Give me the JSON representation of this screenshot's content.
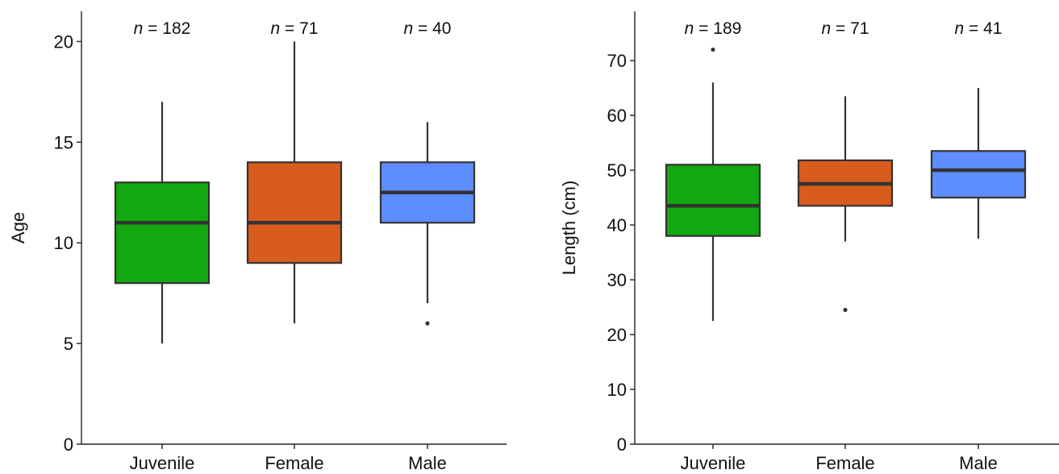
{
  "chart_data": [
    {
      "type": "box",
      "ylabel": "Age",
      "xlabel": "",
      "ylim": [
        0,
        21.5
      ],
      "yticks": [
        0,
        5,
        10,
        15,
        20
      ],
      "grid": false,
      "categories": [
        "Juvenile",
        "Female",
        "Male"
      ],
      "colors": [
        "#12a80f",
        "#d95c1f",
        "#5e8dff"
      ],
      "boxes": [
        {
          "category": "Juvenile",
          "n": "182",
          "whisker_low": 5,
          "q1": 8,
          "median": 11,
          "q3": 13,
          "whisker_high": 17,
          "outliers": []
        },
        {
          "category": "Female",
          "n": "71",
          "whisker_low": 6,
          "q1": 9,
          "median": 11,
          "q3": 14,
          "whisker_high": 20,
          "outliers": []
        },
        {
          "category": "Male",
          "n": "40",
          "whisker_low": 7,
          "q1": 11,
          "median": 12.5,
          "q3": 14,
          "whisker_high": 16,
          "outliers": [
            6
          ]
        }
      ],
      "n_prefix": "n",
      "n_sep": "="
    },
    {
      "type": "box",
      "ylabel": "Length (cm)",
      "xlabel": "",
      "ylim": [
        0,
        79
      ],
      "yticks": [
        0,
        10,
        20,
        30,
        40,
        50,
        60,
        70
      ],
      "grid": false,
      "categories": [
        "Juvenile",
        "Female",
        "Male"
      ],
      "colors": [
        "#12a80f",
        "#d95c1f",
        "#5e8dff"
      ],
      "boxes": [
        {
          "category": "Juvenile",
          "n": "189",
          "whisker_low": 22.5,
          "q1": 38,
          "median": 43.5,
          "q3": 51,
          "whisker_high": 66,
          "outliers": [
            72
          ]
        },
        {
          "category": "Female",
          "n": "71",
          "whisker_low": 37,
          "q1": 43.5,
          "median": 47.5,
          "q3": 51.8,
          "whisker_high": 63.5,
          "outliers": [
            24.5
          ]
        },
        {
          "category": "Male",
          "n": "41",
          "whisker_low": 37.5,
          "q1": 45,
          "median": 50,
          "q3": 53.5,
          "whisker_high": 65,
          "outliers": []
        }
      ],
      "n_prefix": "n",
      "n_sep": "="
    }
  ]
}
